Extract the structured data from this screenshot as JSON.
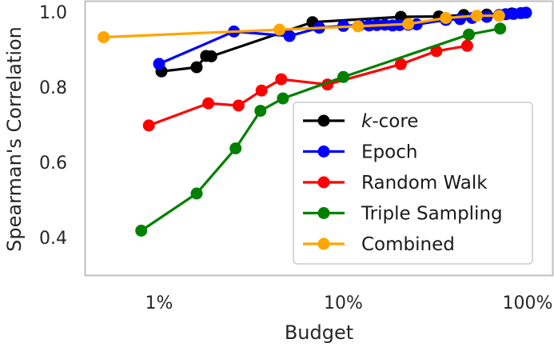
{
  "chart_data": {
    "type": "line",
    "xscale": "log",
    "xlabel": "Budget",
    "ylabel": "Spearman's Correlation",
    "xlim": [
      0.4,
      110
    ],
    "ylim": [
      0.33,
      1.02
    ],
    "xticks": [
      {
        "value": 1,
        "label": "1%"
      },
      {
        "value": 10,
        "label": "10%"
      },
      {
        "value": 100,
        "label": "100%"
      }
    ],
    "yticks": [
      {
        "value": 0.4,
        "label": "0.4"
      },
      {
        "value": 0.6,
        "label": "0.6"
      },
      {
        "value": 0.8,
        "label": "0.8"
      },
      {
        "value": 1.0,
        "label": "1.0"
      }
    ],
    "legend": {
      "position": "lower-right"
    },
    "series": [
      {
        "name": "k-core",
        "name_prefix": "k",
        "name_suffix": "-core",
        "italic_prefix": true,
        "color": "#000000",
        "x": [
          1.03,
          1.6,
          1.8,
          1.92,
          6.8,
          20.5,
          33.0,
          45.0,
          60.0,
          82.0
        ],
        "y": [
          0.842,
          0.853,
          0.883,
          0.882,
          0.973,
          0.987,
          0.988,
          0.992,
          0.993,
          0.996
        ]
      },
      {
        "name": "Epoch",
        "color": "#0000ff",
        "x": [
          1.0,
          2.55,
          5.1,
          7.4,
          10.0,
          12.3,
          13.8,
          15.2,
          16.8,
          18.5,
          20.2,
          22.5,
          25.0,
          36.0,
          43.0,
          50.0,
          60.0,
          70.0,
          76.0,
          84.0,
          92.0,
          98.0
        ],
        "y": [
          0.862,
          0.948,
          0.936,
          0.958,
          0.963,
          0.965,
          0.964,
          0.965,
          0.966,
          0.964,
          0.965,
          0.966,
          0.967,
          0.979,
          0.981,
          0.984,
          0.987,
          0.992,
          0.994,
          0.995,
          0.997,
          0.998
        ]
      },
      {
        "name": "Random Walk",
        "color": "#ff0000",
        "x": [
          0.88,
          1.85,
          2.7,
          3.6,
          4.6,
          8.2,
          20.5,
          32.0,
          47.0
        ],
        "y": [
          0.698,
          0.757,
          0.751,
          0.791,
          0.821,
          0.807,
          0.861,
          0.896,
          0.91
        ]
      },
      {
        "name": "Triple Sampling",
        "color": "#008000",
        "x": [
          0.8,
          1.6,
          2.6,
          3.55,
          4.7,
          10.0,
          48.0,
          71.0
        ],
        "y": [
          0.418,
          0.517,
          0.637,
          0.737,
          0.77,
          0.827,
          0.94,
          0.956
        ]
      },
      {
        "name": "Combined",
        "color": "#ffa500",
        "x": [
          0.5,
          4.5,
          12.0,
          22.5,
          36.0,
          53.0,
          70.0
        ],
        "y": [
          0.933,
          0.953,
          0.962,
          0.968,
          0.984,
          0.99,
          0.99
        ]
      }
    ]
  }
}
